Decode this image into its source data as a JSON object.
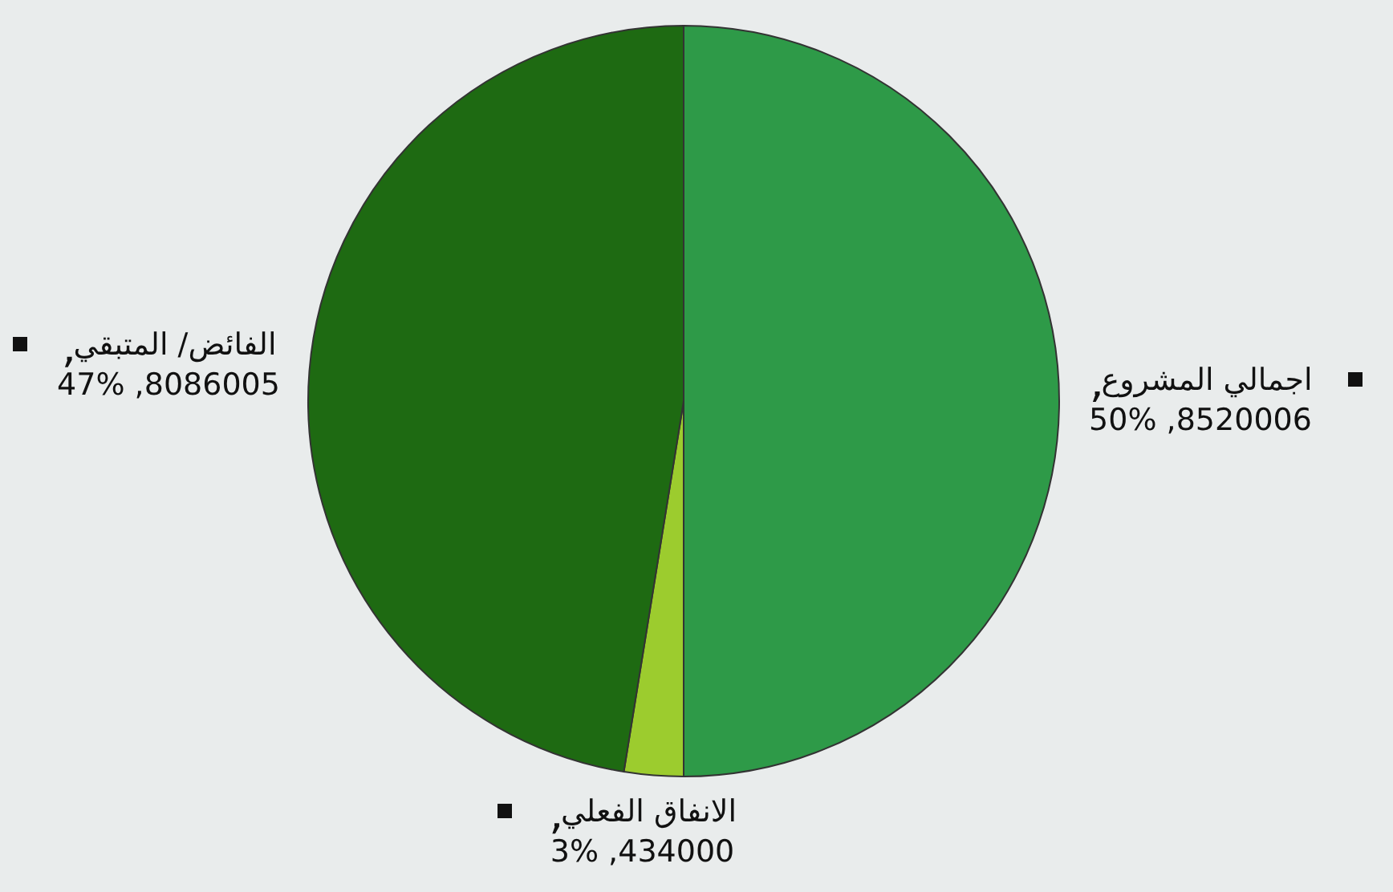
{
  "chart_data": {
    "type": "pie",
    "categories": [
      "اجمالي المشروع",
      "الانفاق الفعلي",
      "الفائض/ المتبقي"
    ],
    "values": [
      8520006,
      434000,
      8086005
    ],
    "colors": [
      "#2e9a48",
      "#9ccc2e",
      "#1e6a12"
    ],
    "value_labels": [
      "8520006, 50%",
      "434000, 3%",
      "8086005, 47%"
    ]
  }
}
